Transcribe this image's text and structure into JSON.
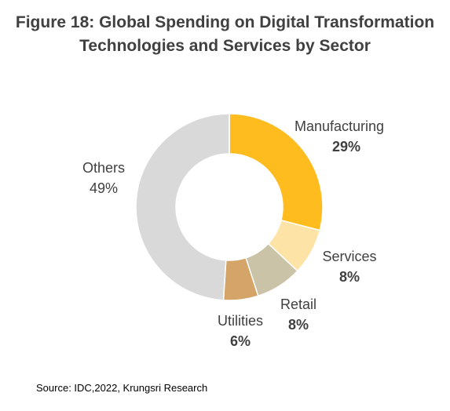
{
  "title": {
    "line1": "Figure 18: Global Spending on Digital Transformation",
    "line2": "Technologies and Services by Sector"
  },
  "source": "Source: IDC,2022, Krungsri Research",
  "chart_data": {
    "type": "pie",
    "style": "donut",
    "slices": [
      {
        "label": "Manufacturing",
        "value": 29,
        "value_label": "29%",
        "color": "#FFBC1F"
      },
      {
        "label": "Services",
        "value": 8,
        "value_label": "8%",
        "color": "#FDE4A6"
      },
      {
        "label": "Retail",
        "value": 8,
        "value_label": "8%",
        "color": "#CBC3A7"
      },
      {
        "label": "Utilities",
        "value": 6,
        "value_label": "6%",
        "color": "#D4A469"
      },
      {
        "label": "Others",
        "value": 49,
        "value_label": "49%",
        "color": "#D9D9D9"
      }
    ],
    "start_angle": "12 o'clock",
    "direction": "clockwise"
  }
}
